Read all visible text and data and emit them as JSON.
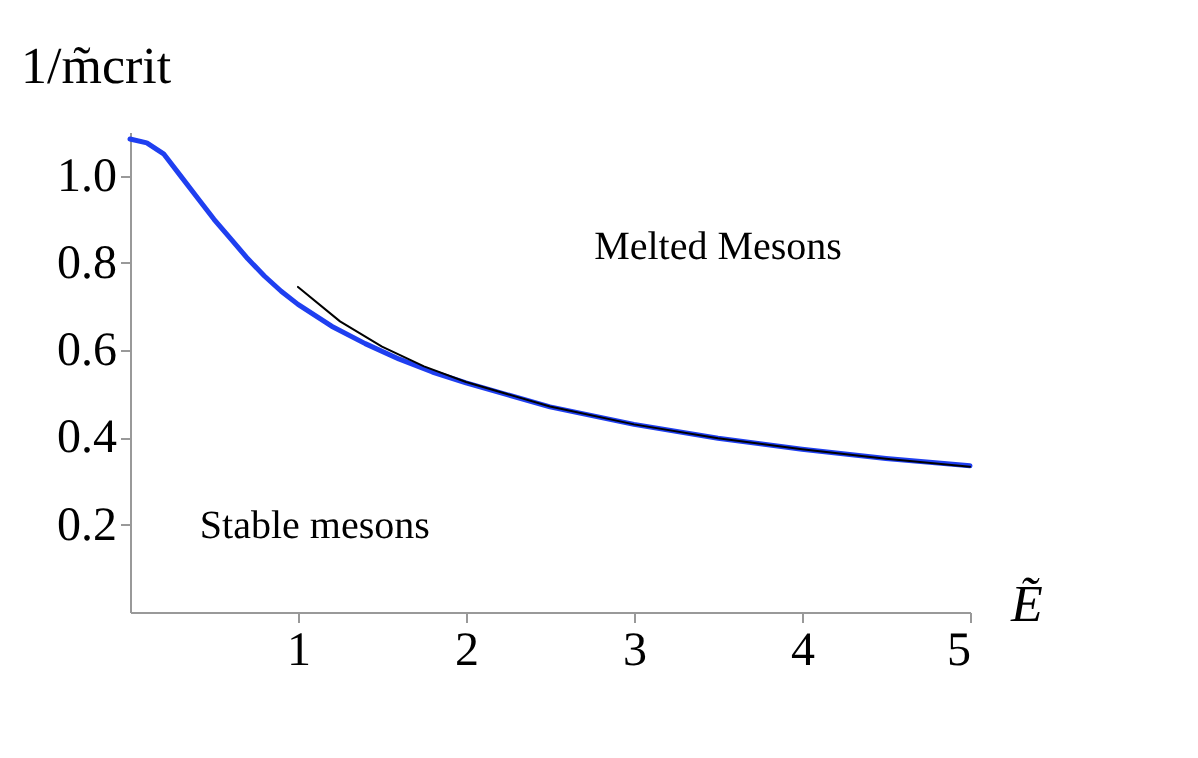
{
  "chart_data": {
    "type": "line",
    "xlabel": "Ẽ",
    "ylabel": "1/m̃crit",
    "xlim": [
      0,
      5
    ],
    "ylim": [
      0,
      1.1
    ],
    "xticks": [
      1,
      2,
      3,
      4,
      5
    ],
    "yticks": [
      0.2,
      0.4,
      0.6,
      0.8,
      {
        "value": 1.0,
        "label": "1.0"
      }
    ],
    "grid": false,
    "legend": false,
    "series": [
      {
        "color": "#1f3ff0",
        "x": [
          0,
          0.1,
          0.2,
          0.3,
          0.4,
          0.5,
          0.6,
          0.7,
          0.8,
          0.9,
          1.0,
          1.2,
          1.4,
          1.6,
          1.8,
          2.0,
          2.5,
          3.0,
          3.5,
          4.0,
          4.5,
          5.0
        ],
        "values": [
          1.084,
          1.075,
          1.05,
          1.0,
          0.95,
          0.9,
          0.855,
          0.81,
          0.77,
          0.735,
          0.705,
          0.655,
          0.615,
          0.58,
          0.55,
          0.525,
          0.47,
          0.43,
          0.398,
          0.373,
          0.352,
          0.335
        ]
      },
      {
        "color": "#000000",
        "x": [
          1.0,
          1.25,
          1.5,
          1.75,
          2.0,
          2.5,
          3.0,
          3.5,
          4.0,
          4.5,
          5.0
        ],
        "values": [
          0.745,
          0.666,
          0.608,
          0.563,
          0.527,
          0.471,
          0.43,
          0.398,
          0.373,
          0.351,
          0.333
        ]
      }
    ],
    "annotations": [
      "Melted Mesons",
      "Stable mesons"
    ]
  }
}
